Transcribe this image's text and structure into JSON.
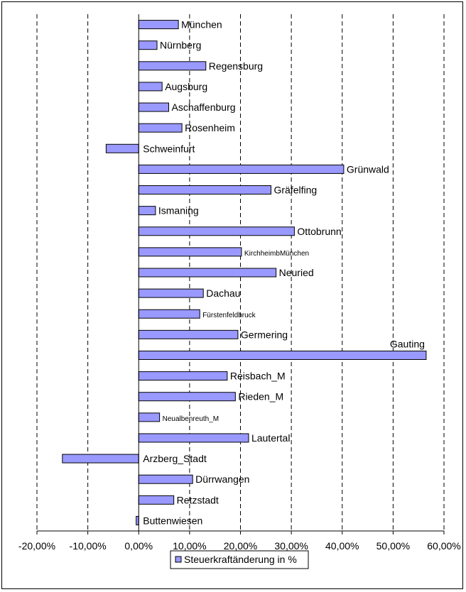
{
  "chart_data": {
    "type": "bar",
    "orientation": "horizontal",
    "categories": [
      "München",
      "Nürnberg",
      "Regensburg",
      "Augsburg",
      "Aschaffenburg",
      "Rosenheim",
      "Schweinfurt",
      "Grünwald",
      "Gräfelfing",
      "Ismaning",
      "Ottobrunn",
      "KirchheimbMünchen",
      "Neuried",
      "Dachau",
      "Fürstenfeldbruck",
      "Germering",
      "Gauting",
      "Reisbach_M",
      "Rieden_M",
      "Neualbenreuth_M",
      "Lautertal",
      "Arzberg_Stadt",
      "Dürrwangen",
      "Retzstadt",
      "Buttenwiesen"
    ],
    "series": [
      {
        "name": "Steuerkraftänderung in %",
        "color": "#9999ff",
        "values": [
          7.8,
          3.6,
          13.2,
          4.6,
          5.9,
          8.5,
          -6.4,
          40.3,
          26.0,
          3.3,
          30.6,
          20.2,
          27.0,
          12.7,
          12.0,
          19.5,
          56.5,
          17.4,
          19.0,
          4.1,
          21.6,
          -15.0,
          10.6,
          6.9,
          -0.5
        ]
      }
    ],
    "xlim": [
      -20,
      60
    ],
    "xticks": [
      "-20,00%",
      "-10,00%",
      "0,00%",
      "10,00%",
      "20,00%",
      "30,00%",
      "40,00%",
      "50,00%",
      "60,00%"
    ],
    "tick_values": [
      -20,
      -10,
      0,
      10,
      20,
      30,
      40,
      50,
      60
    ],
    "grid": "vertical-dashed",
    "legend_position": "bottom",
    "title": "",
    "xlabel": "",
    "ylabel": ""
  }
}
